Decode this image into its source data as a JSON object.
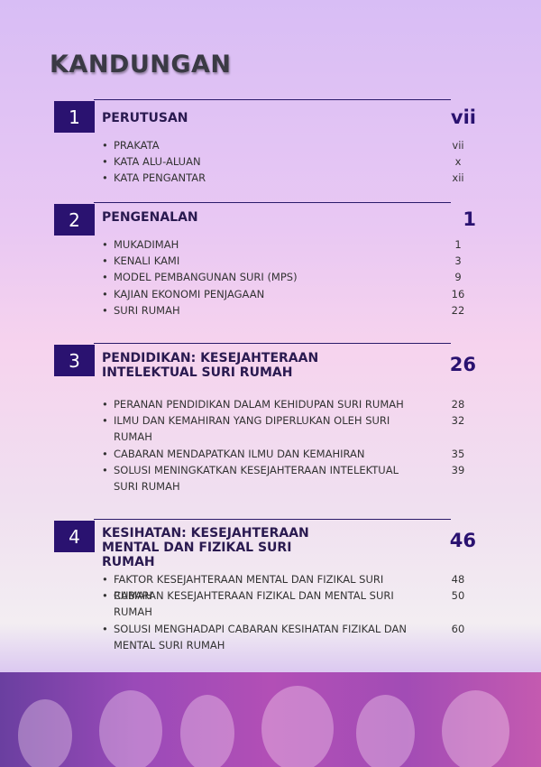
{
  "title": "KANDUNGAN",
  "sections": [
    {
      "number": "1",
      "title": "PERUTUSAN",
      "page": "vii",
      "items": [
        {
          "label": "PRAKATA",
          "page": "vii"
        },
        {
          "label": "KATA ALU-ALUAN",
          "page": "x"
        },
        {
          "label": "KATA PENGANTAR",
          "page": "xii"
        }
      ]
    },
    {
      "number": "2",
      "title": "PENGENALAN",
      "page": "1",
      "items": [
        {
          "label": "MUKADIMAH",
          "page": "1"
        },
        {
          "label": "KENALI KAMI",
          "page": "3"
        },
        {
          "label": "MODEL PEMBANGUNAN SURI (MPS)",
          "page": "9"
        },
        {
          "label": "KAJIAN EKONOMI PENJAGAAN",
          "page": "16"
        },
        {
          "label": "SURI RUMAH",
          "page": "22"
        }
      ]
    },
    {
      "number": "3",
      "title": "PENDIDIKAN: KESEJAHTERAAN INTELEKTUAL SURI RUMAH",
      "page": "26",
      "items": [
        {
          "label": "PERANAN PENDIDIKAN DALAM KEHIDUPAN SURI RUMAH",
          "page": "28"
        },
        {
          "label": "ILMU DAN KEMAHIRAN YANG DIPERLUKAN OLEH SURI RUMAH",
          "page": "32"
        },
        {
          "label": "CABARAN MENDAPATKAN ILMU DAN KEMAHIRAN",
          "page": "35"
        },
        {
          "label": "SOLUSI MENINGKATKAN KESEJAHTERAAN INTELEKTUAL SURI RUMAH",
          "page": "39"
        }
      ]
    },
    {
      "number": "4",
      "title": "KESIHATAN: KESEJAHTERAAN MENTAL DAN FIZIKAL SURI RUMAH",
      "page": "46",
      "items": [
        {
          "label": "FAKTOR KESEJAHTERAAN MENTAL DAN FIZIKAL SURI RUMAH",
          "page": "48"
        },
        {
          "label": "CABARAN KESEJAHTERAAN FIZIKAL DAN MENTAL SURI RUMAH",
          "page": "50"
        },
        {
          "label": "SOLUSI MENGHADAPI CABARAN KESIHATAN FIZIKAL DAN MENTAL SURI RUMAH",
          "page": "60"
        }
      ]
    }
  ]
}
